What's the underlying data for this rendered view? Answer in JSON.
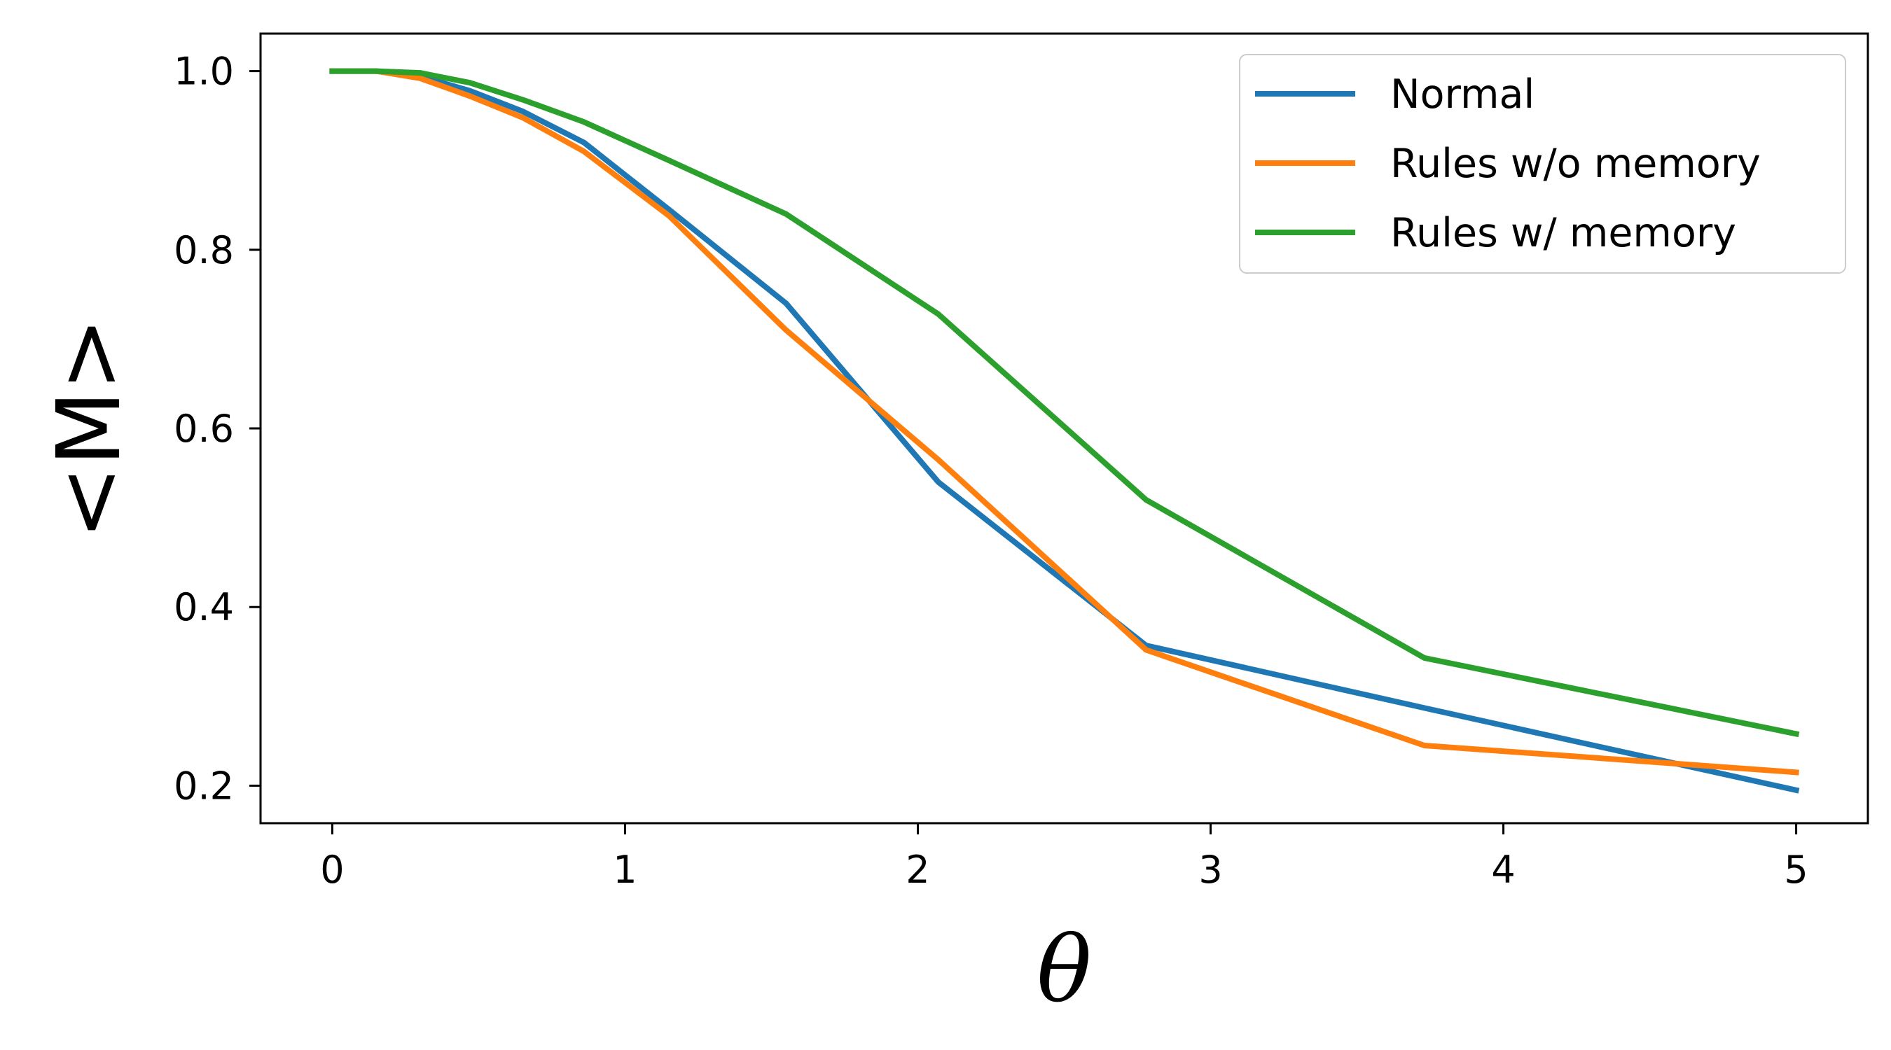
{
  "chart_data": {
    "type": "line",
    "title": "",
    "xlabel": "θ",
    "ylabel": "<M>",
    "xlim": [
      -0.245,
      5.245
    ],
    "ylim": [
      0.158,
      1.042
    ],
    "xticks": [
      0,
      1,
      2,
      3,
      4,
      5
    ],
    "xtick_labels": [
      "0",
      "1",
      "2",
      "3",
      "4",
      "5"
    ],
    "yticks": [
      0.2,
      0.4,
      0.6,
      0.8,
      1.0
    ],
    "ytick_labels": [
      "0.2",
      "0.4",
      "0.6",
      "0.8",
      "1.0"
    ],
    "grid": false,
    "legend_position": "top-right",
    "series": [
      {
        "name": "Normal",
        "color": "#1f77b4",
        "x": [
          0,
          0.15,
          0.3,
          0.47,
          0.65,
          0.86,
          1.15,
          1.55,
          2.07,
          2.78,
          3.73,
          5.0
        ],
        "y": [
          1.0,
          1.0,
          0.994,
          0.978,
          0.955,
          0.92,
          0.845,
          0.74,
          0.54,
          0.357,
          0.287,
          0.195
        ]
      },
      {
        "name": "Rules w/o memory",
        "color": "#ff7f0e",
        "x": [
          0,
          0.15,
          0.3,
          0.47,
          0.65,
          0.86,
          1.15,
          1.55,
          2.07,
          2.78,
          3.73,
          5.0
        ],
        "y": [
          1.0,
          1.0,
          0.992,
          0.972,
          0.948,
          0.91,
          0.838,
          0.71,
          0.565,
          0.352,
          0.245,
          0.215
        ]
      },
      {
        "name": "Rules w/ memory",
        "color": "#2ca02c",
        "x": [
          0,
          0.15,
          0.3,
          0.47,
          0.65,
          0.86,
          1.15,
          1.55,
          2.07,
          2.78,
          3.73,
          5.0
        ],
        "y": [
          1.0,
          1.0,
          0.998,
          0.987,
          0.968,
          0.943,
          0.9,
          0.84,
          0.728,
          0.52,
          0.343,
          0.258
        ]
      }
    ]
  }
}
